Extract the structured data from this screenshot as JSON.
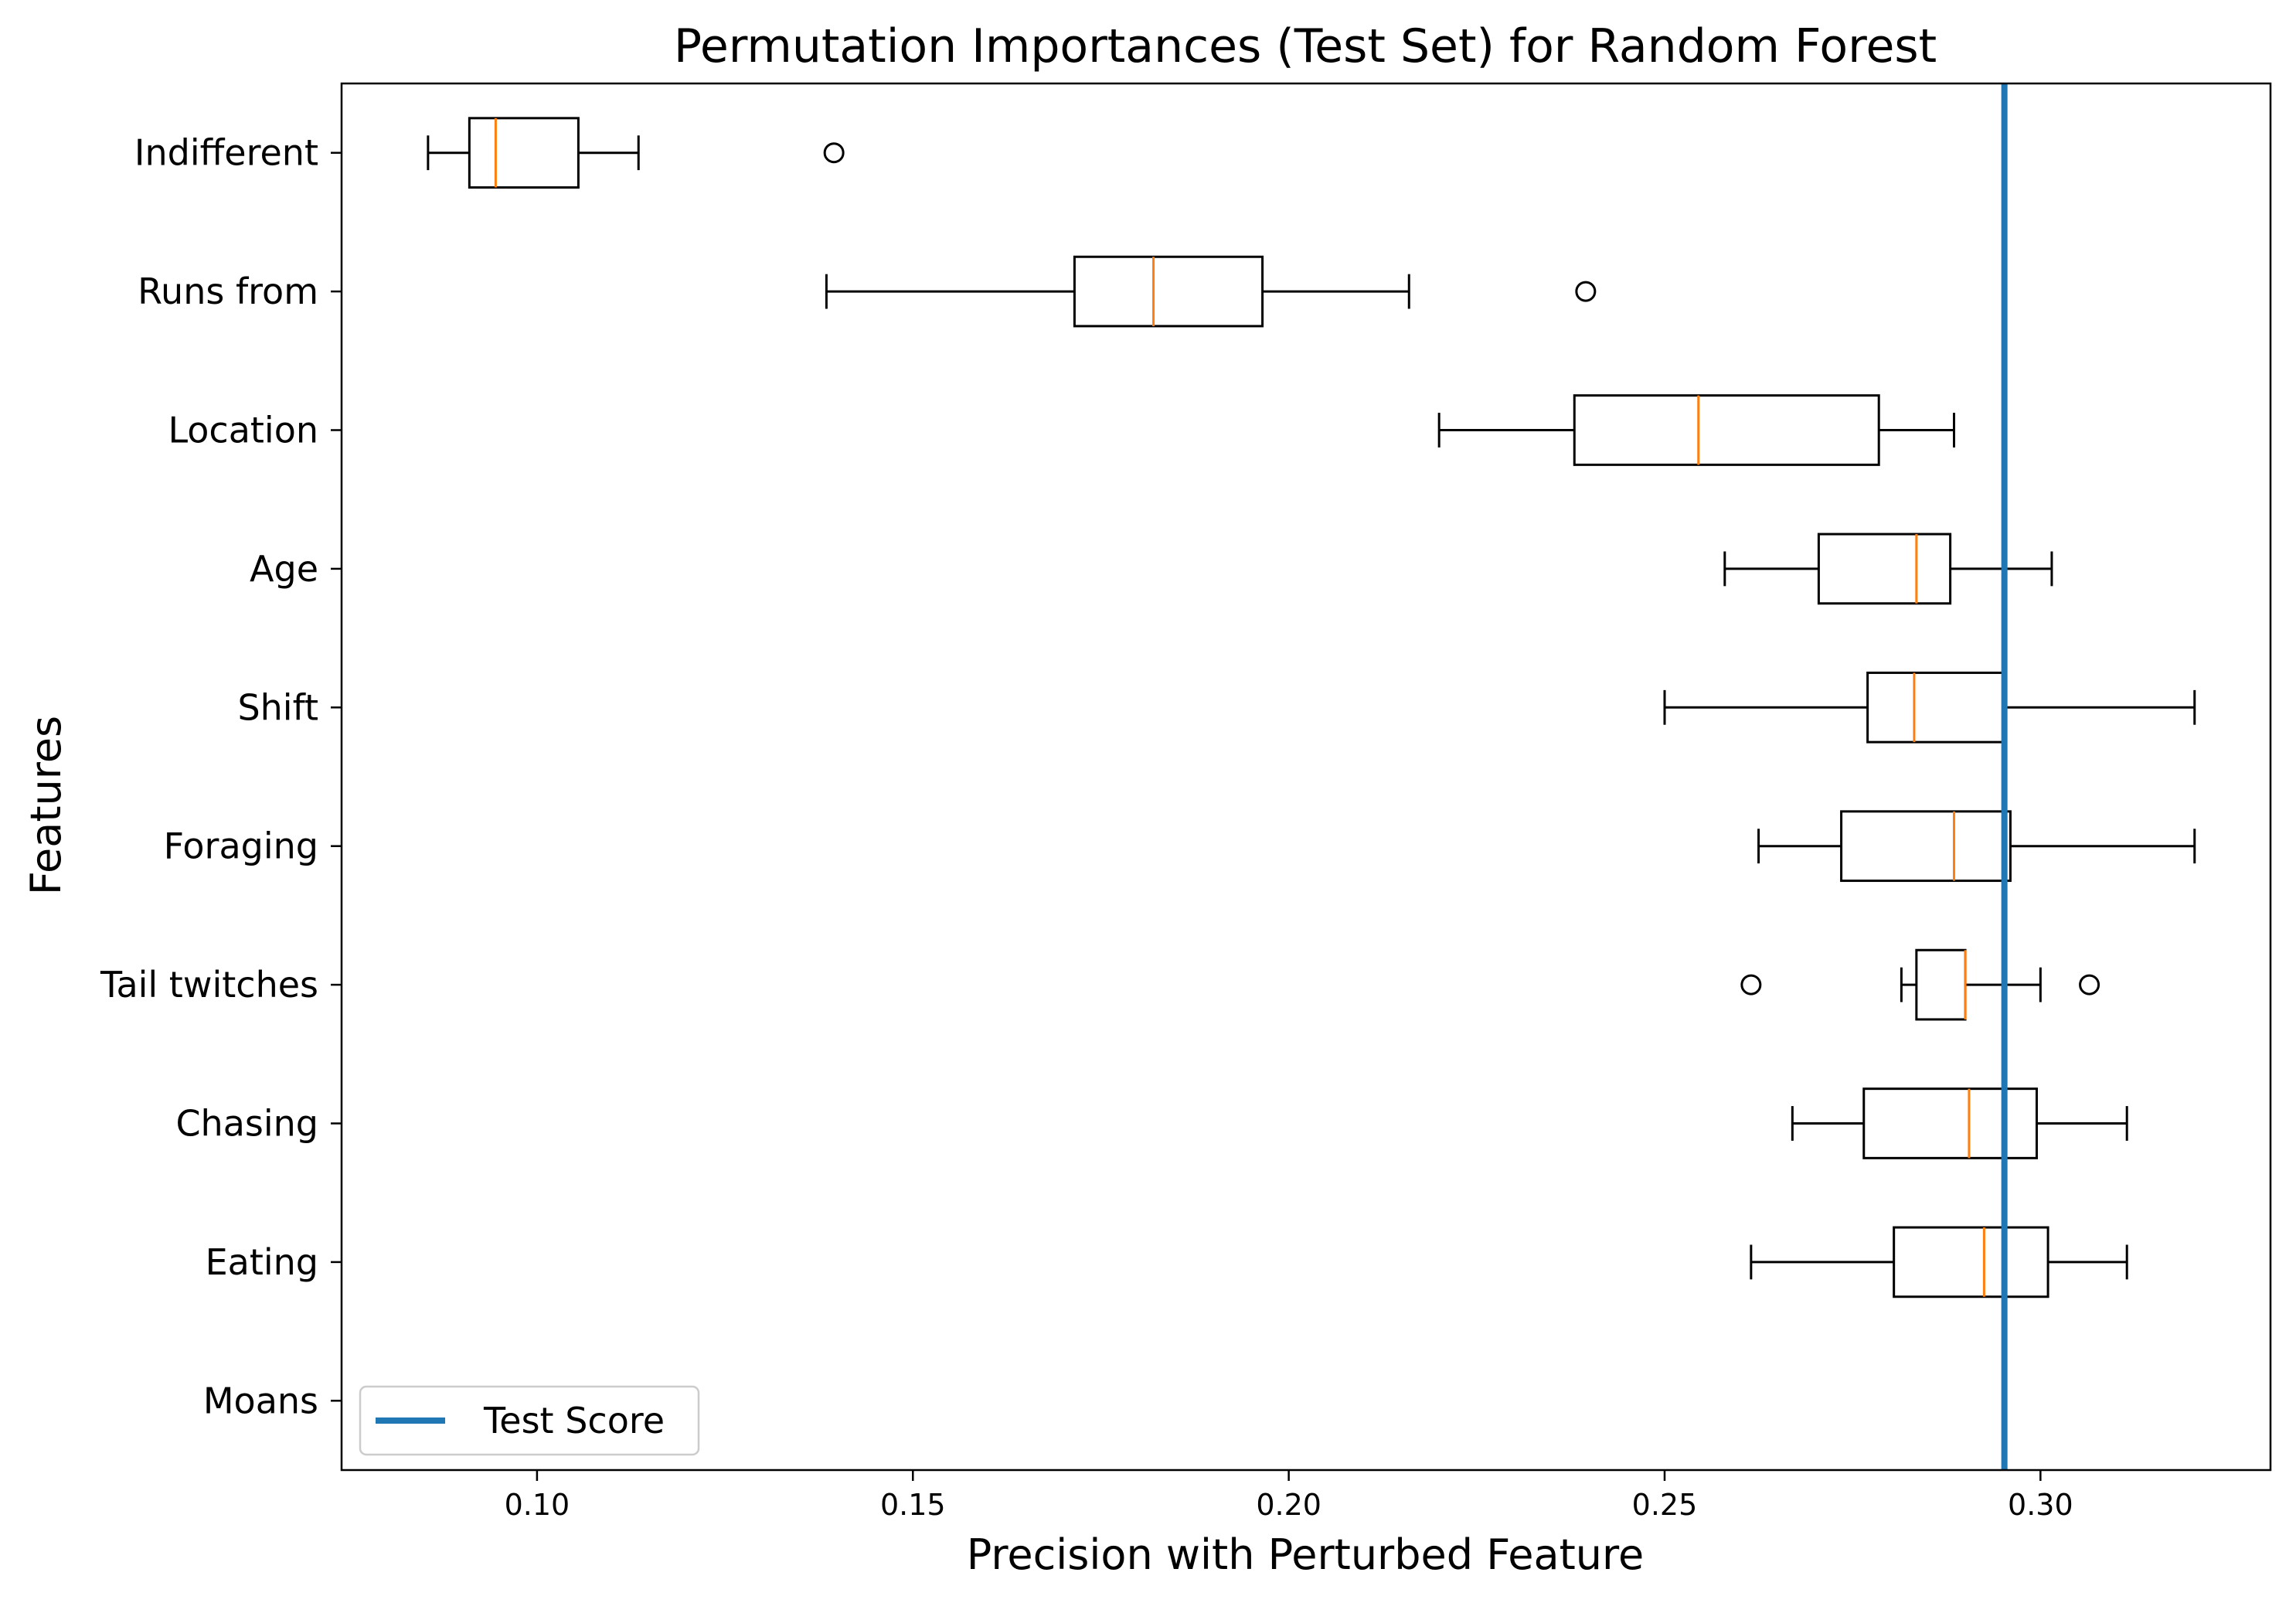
{
  "chart_data": {
    "type": "boxplot",
    "orientation": "horizontal",
    "title": "Permutation Importances (Test Set) for Random Forest",
    "xlabel": "Precision with Perturbed Feature",
    "ylabel": "Features",
    "xlim": [
      0.074,
      0.3306
    ],
    "xticks": [
      0.1,
      0.15,
      0.2,
      0.25,
      0.3
    ],
    "xtick_labels": [
      "0.10",
      "0.15",
      "0.20",
      "0.25",
      "0.30"
    ],
    "categories": [
      "Indifferent",
      "Runs from",
      "Location",
      "Age",
      "Shift",
      "Foraging",
      "Tail twitches",
      "Chasing",
      "Eating",
      "Moans"
    ],
    "boxes": [
      {
        "feature": "Indifferent",
        "whisker_low": 0.0855,
        "q1": 0.091,
        "median": 0.0945,
        "q3": 0.1055,
        "whisker_high": 0.1135,
        "outliers": [
          0.1395
        ]
      },
      {
        "feature": "Runs from",
        "whisker_low": 0.1385,
        "q1": 0.1715,
        "median": 0.182,
        "q3": 0.1965,
        "whisker_high": 0.216,
        "outliers": [
          0.2395
        ]
      },
      {
        "feature": "Location",
        "whisker_low": 0.22,
        "q1": 0.238,
        "median": 0.2545,
        "q3": 0.2785,
        "whisker_high": 0.2885,
        "outliers": []
      },
      {
        "feature": "Age",
        "whisker_low": 0.258,
        "q1": 0.2705,
        "median": 0.2835,
        "q3": 0.288,
        "whisker_high": 0.3015,
        "outliers": []
      },
      {
        "feature": "Shift",
        "whisker_low": 0.25,
        "q1": 0.277,
        "median": 0.2832,
        "q3": 0.2952,
        "whisker_high": 0.3205,
        "outliers": []
      },
      {
        "feature": "Foraging",
        "whisker_low": 0.2625,
        "q1": 0.2735,
        "median": 0.2885,
        "q3": 0.296,
        "whisker_high": 0.3205,
        "outliers": []
      },
      {
        "feature": "Tail twitches",
        "whisker_low": 0.2815,
        "q1": 0.2835,
        "median": 0.29,
        "q3": 0.29,
        "whisker_high": 0.3,
        "outliers": [
          0.2615,
          0.3065
        ]
      },
      {
        "feature": "Chasing",
        "whisker_low": 0.267,
        "q1": 0.2765,
        "median": 0.2905,
        "q3": 0.2995,
        "whisker_high": 0.3115,
        "outliers": []
      },
      {
        "feature": "Eating",
        "whisker_low": 0.2615,
        "q1": 0.2805,
        "median": 0.2925,
        "q3": 0.301,
        "whisker_high": 0.3115,
        "outliers": []
      },
      {
        "feature": "Moans",
        "whisker_low": 0.2952,
        "q1": 0.2952,
        "median": 0.2952,
        "q3": 0.2952,
        "whisker_high": 0.2952,
        "outliers": []
      }
    ],
    "reference_line": {
      "name": "Test Score",
      "x": 0.2952,
      "color": "#1f77b4"
    },
    "legend": {
      "placement": "lower-left",
      "entries": [
        "Test Score"
      ]
    },
    "colors": {
      "box": "#000000",
      "median": "#ff7f0e",
      "reference": "#1f77b4"
    },
    "grid": false
  }
}
